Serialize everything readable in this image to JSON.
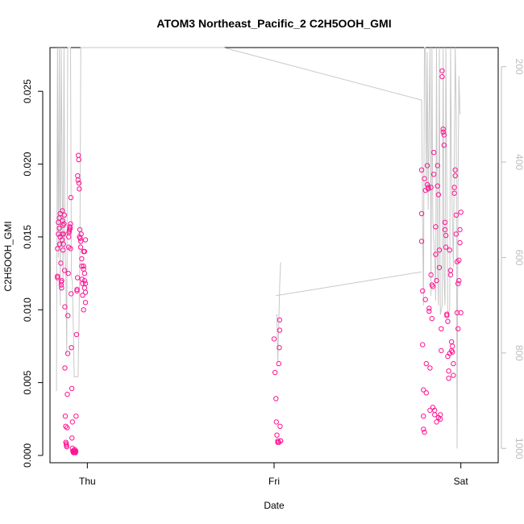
{
  "chart_data": {
    "type": "scatter",
    "title": "ATOM3 Northeast_Pacific_2 C2H5OOH_GMI",
    "xlabel": "Date",
    "ylabel": "C2H5OOH_GMI",
    "x_ticks": [
      "Thu",
      "Fri",
      "Sat"
    ],
    "y_ticks": [
      "0.000",
      "0.005",
      "0.010",
      "0.015",
      "0.020",
      "0.025"
    ],
    "ylim": [
      -0.0005,
      0.028
    ],
    "right_axis": {
      "label": "",
      "ticks": [
        "200",
        "400",
        "600",
        "800",
        "1000"
      ],
      "lim": [
        1030,
        160
      ],
      "color": "#bdbdbd"
    },
    "xlim_days": [
      -0.2,
      2.2
    ],
    "points_color": "#ff1493",
    "line_color": "#c8c8c8",
    "series": [
      {
        "type": "points",
        "x": [
          -0.16,
          -0.16,
          -0.16,
          -0.155,
          -0.155,
          -0.15,
          -0.15,
          -0.148,
          -0.145,
          -0.145,
          -0.142,
          -0.14,
          -0.14,
          -0.138,
          -0.137,
          -0.135,
          -0.135,
          -0.133,
          -0.132,
          -0.13,
          -0.13,
          -0.128,
          -0.127,
          -0.125,
          -0.123,
          -0.122,
          -0.12,
          -0.12,
          -0.118,
          -0.116,
          -0.115,
          -0.113,
          -0.112,
          -0.11,
          -0.108,
          -0.107,
          -0.105,
          -0.104,
          -0.102,
          -0.1,
          -0.1,
          -0.098,
          -0.097,
          -0.095,
          -0.094,
          -0.092,
          -0.09,
          -0.09,
          -0.088,
          -0.087,
          -0.085,
          -0.083,
          -0.082,
          -0.08,
          -0.08,
          -0.078,
          -0.076,
          -0.075,
          -0.073,
          -0.072,
          -0.07,
          -0.068,
          -0.067,
          -0.065,
          -0.063,
          -0.062,
          -0.06,
          -0.058,
          -0.056,
          -0.055,
          -0.053,
          -0.052,
          -0.05,
          -0.048,
          -0.046,
          -0.045,
          -0.043,
          -0.042,
          -0.04,
          -0.038,
          -0.036,
          -0.035,
          -0.033,
          -0.03,
          -0.03,
          -0.028,
          -0.025,
          -0.025,
          -0.02,
          -0.02,
          -0.02,
          -0.02,
          -0.015,
          -0.015,
          -0.015,
          -0.015,
          -0.01,
          -0.01,
          -0.01,
          -0.01
        ],
        "y": [
          0.0122,
          0.0123,
          0.0142,
          0.0152,
          0.016,
          0.0163,
          0.0156,
          0.0145,
          0.0166,
          0.015,
          0.0132,
          0.0119,
          0.0117,
          0.0115,
          0.012,
          0.0152,
          0.0148,
          0.0168,
          0.0161,
          0.0158,
          0.0141,
          0.0145,
          0.0152,
          0.0159,
          0.0165,
          0.0127,
          0.0102,
          0.006,
          0.0027,
          0.002,
          0.0009,
          0.0008,
          0.0007,
          0.0006,
          0.0019,
          0.0042,
          0.007,
          0.0096,
          0.0125,
          0.0143,
          0.015,
          0.0153,
          0.0154,
          0.0155,
          0.0157,
          0.0156,
          0.0159,
          0.0142,
          0.0177,
          0.0111,
          0.0074,
          0.0046,
          0.0012,
          0.0023,
          0.0005,
          0.0003,
          0.0003,
          0.0002,
          0.0002,
          0.0003,
          0.0002,
          0.0004,
          0.0003,
          0.0002,
          0.0002,
          0.0003,
          0.0027,
          0.0083,
          0.0113,
          0.0114,
          0.0122,
          0.0192,
          0.0189,
          0.0206,
          0.0203,
          0.0187,
          0.0183,
          0.015,
          0.0155,
          0.0149,
          0.0143,
          0.0147,
          0.0152,
          0.0135,
          0.013,
          0.0121,
          0.0118,
          0.011,
          0.013,
          0.0128,
          0.014,
          0.01,
          0.0125,
          0.012,
          0.014,
          0.0115,
          0.0118,
          0.0148,
          0.0105,
          0.0112
        ]
      },
      {
        "type": "points",
        "x": [
          1.0,
          1.005,
          1.01,
          1.012,
          1.015,
          1.02,
          1.02,
          1.025,
          1.025,
          1.028,
          1.03,
          1.03,
          1.032,
          1.035,
          1.035
        ],
        "y": [
          0.008,
          0.0057,
          0.0039,
          0.0023,
          0.0014,
          0.001,
          0.0009,
          0.0009,
          0.0063,
          0.0074,
          0.0086,
          0.0093,
          0.002,
          0.001,
          0.001
        ]
      },
      {
        "type": "points",
        "x": [
          1.79,
          1.79,
          1.79,
          1.795,
          1.795,
          1.8,
          1.8,
          1.8,
          1.805,
          1.805,
          1.81,
          1.81,
          1.815,
          1.815,
          1.82,
          1.82,
          1.825,
          1.825,
          1.83,
          1.83,
          1.835,
          1.835,
          1.84,
          1.84,
          1.845,
          1.845,
          1.85,
          1.85,
          1.855,
          1.855,
          1.86,
          1.86,
          1.865,
          1.865,
          1.87,
          1.87,
          1.875,
          1.875,
          1.88,
          1.88,
          1.885,
          1.885,
          1.89,
          1.89,
          1.895,
          1.895,
          1.9,
          1.9,
          1.905,
          1.905,
          1.91,
          1.91,
          1.915,
          1.915,
          1.92,
          1.92,
          1.925,
          1.925,
          1.93,
          1.93,
          1.935,
          1.935,
          1.94,
          1.94,
          1.945,
          1.945,
          1.95,
          1.95,
          1.955,
          1.955,
          1.96,
          1.96,
          1.965,
          1.965,
          1.97,
          1.97,
          1.975,
          1.975,
          1.98,
          1.98,
          1.985,
          1.985,
          1.99,
          1.99,
          1.995,
          1.995,
          2.0,
          2.0
        ],
        "y": [
          0.0196,
          0.0166,
          0.0147,
          0.0113,
          0.0076,
          0.0045,
          0.0027,
          0.0018,
          0.0016,
          0.019,
          0.0182,
          0.0107,
          0.0063,
          0.0043,
          0.0199,
          0.0186,
          0.0184,
          0.0183,
          0.0101,
          0.0099,
          0.006,
          0.0031,
          0.0184,
          0.0124,
          0.0117,
          0.0094,
          0.0116,
          0.0033,
          0.0208,
          0.0193,
          0.0031,
          0.0028,
          0.0138,
          0.0157,
          0.012,
          0.0023,
          0.0199,
          0.0185,
          0.0179,
          0.0026,
          0.0141,
          0.0129,
          0.0028,
          0.0025,
          0.0087,
          0.0072,
          0.0264,
          0.026,
          0.0224,
          0.0222,
          0.022,
          0.0213,
          0.016,
          0.0155,
          0.0151,
          0.0143,
          0.0097,
          0.0096,
          0.0092,
          0.0068,
          0.0058,
          0.0053,
          0.007,
          0.0141,
          0.0124,
          0.0127,
          0.0078,
          0.0072,
          0.0075,
          0.0071,
          0.0063,
          0.0055,
          0.018,
          0.0184,
          0.0192,
          0.0196,
          0.0165,
          0.0152,
          0.0133,
          0.0098,
          0.0087,
          0.0118,
          0.012,
          0.0134,
          0.0146,
          0.0155,
          0.0167,
          0.0098
        ]
      }
    ]
  }
}
